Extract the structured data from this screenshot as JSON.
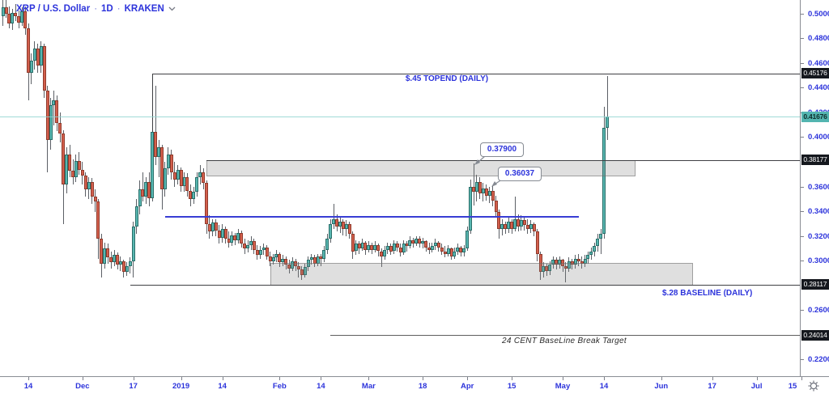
{
  "chart_data": {
    "type": "candlestick",
    "symbol": "XRP / U.S. Dollar",
    "interval": "1D",
    "exchange": "KRAKEN",
    "separator": "·",
    "current_price": 0.41676,
    "current_price_label": "0.41676",
    "price_scale": {
      "price_at_top": 0.5112,
      "price_at_bottom": 0.2069,
      "ticks": [
        {
          "label": "0.50000",
          "value": 0.5
        },
        {
          "label": "0.48000",
          "value": 0.48
        },
        {
          "label": "0.46000",
          "value": 0.46
        },
        {
          "label": "0.44000",
          "value": 0.44
        },
        {
          "label": "0.42000",
          "value": 0.42
        },
        {
          "label": "0.40000",
          "value": 0.4
        },
        {
          "label": "0.36000",
          "value": 0.36
        },
        {
          "label": "0.34000",
          "value": 0.34
        },
        {
          "label": "0.32000",
          "value": 0.32
        },
        {
          "label": "0.30000",
          "value": 0.3
        },
        {
          "label": "0.26000",
          "value": 0.26
        },
        {
          "label": "0.22000",
          "value": 0.22
        }
      ]
    },
    "time_scale": {
      "start_date": "2018-11-06",
      "visible_days": 251.5,
      "ticks": [
        {
          "label": "14",
          "day": 8
        },
        {
          "label": "Dec",
          "day": 25
        },
        {
          "label": "17",
          "day": 41
        },
        {
          "label": "2019",
          "day": 56
        },
        {
          "label": "14",
          "day": 69
        },
        {
          "label": "Feb",
          "day": 87
        },
        {
          "label": "14",
          "day": 100
        },
        {
          "label": "Mar",
          "day": 115
        },
        {
          "label": "18",
          "day": 132
        },
        {
          "label": "Apr",
          "day": 146
        },
        {
          "label": "15",
          "day": 160
        },
        {
          "label": "May",
          "day": 176
        },
        {
          "label": "14",
          "day": 189
        },
        {
          "label": "Jun",
          "day": 207
        },
        {
          "label": "17",
          "day": 223
        },
        {
          "label": "Jul",
          "day": 237
        },
        {
          "label": "15",
          "day": 251
        }
      ]
    },
    "lines": [
      {
        "id": "topend",
        "price": 0.45176,
        "from_day": 47,
        "to_day": 252,
        "style": "dark",
        "badge": "0.45176",
        "label": "$.45 TOPEND (DAILY)",
        "anchor_down_to": 0.4045
      },
      {
        "id": "resistance",
        "price": 0.38177,
        "from_day": 64,
        "to_day": 252,
        "style": "dark",
        "badge": "0.38177",
        "label": ""
      },
      {
        "id": "mid-range",
        "price": 0.3363,
        "from_day": 51,
        "to_day": 181,
        "style": "blue",
        "badge": "",
        "label": ""
      },
      {
        "id": "baseline",
        "price": 0.28117,
        "from_day": 40,
        "to_day": 252,
        "style": "dark",
        "badge": "0.28117",
        "label": "$.28 BASELINE (DAILY)"
      },
      {
        "id": "target",
        "price": 0.24014,
        "from_day": 103,
        "to_day": 252,
        "style": "gray",
        "badge": "0.24014",
        "label": "24 CENT BaseLine Break Target"
      }
    ],
    "zones": [
      {
        "id": "supply",
        "price_top": 0.38177,
        "price_bottom": 0.3686,
        "from_day": 64,
        "to_day": 199
      },
      {
        "id": "demand",
        "price_top": 0.2985,
        "price_bottom": 0.2805,
        "from_day": 84,
        "to_day": 217
      }
    ],
    "callouts": [
      {
        "label": "0.37900",
        "target_day": 148,
        "target_price": 0.379
      },
      {
        "label": "0.36037",
        "target_day": 154,
        "target_price": 0.3604
      }
    ],
    "candles": [
      [
        0.498,
        0.512,
        0.49,
        0.505
      ],
      [
        0.505,
        0.511,
        0.497,
        0.5
      ],
      [
        0.5,
        0.506,
        0.488,
        0.492
      ],
      [
        0.492,
        0.504,
        0.487,
        0.501
      ],
      [
        0.501,
        0.508,
        0.494,
        0.498
      ],
      [
        0.498,
        0.503,
        0.488,
        0.493
      ],
      [
        0.493,
        0.505,
        0.49,
        0.502
      ],
      [
        0.502,
        0.506,
        0.483,
        0.488
      ],
      [
        0.488,
        0.492,
        0.43,
        0.452
      ],
      [
        0.452,
        0.468,
        0.443,
        0.462
      ],
      [
        0.462,
        0.478,
        0.455,
        0.472
      ],
      [
        0.472,
        0.476,
        0.452,
        0.458
      ],
      [
        0.458,
        0.478,
        0.452,
        0.474
      ],
      [
        0.474,
        0.476,
        0.432,
        0.438
      ],
      [
        0.438,
        0.442,
        0.372,
        0.398
      ],
      [
        0.398,
        0.432,
        0.39,
        0.426
      ],
      [
        0.426,
        0.438,
        0.41,
        0.43
      ],
      [
        0.43,
        0.434,
        0.405,
        0.412
      ],
      [
        0.412,
        0.42,
        0.396,
        0.403
      ],
      [
        0.403,
        0.406,
        0.33,
        0.362
      ],
      [
        0.362,
        0.392,
        0.355,
        0.386
      ],
      [
        0.386,
        0.394,
        0.368,
        0.373
      ],
      [
        0.373,
        0.382,
        0.362,
        0.368
      ],
      [
        0.368,
        0.386,
        0.364,
        0.381
      ],
      [
        0.381,
        0.388,
        0.37,
        0.374
      ],
      [
        0.374,
        0.38,
        0.362,
        0.369
      ],
      [
        0.369,
        0.372,
        0.352,
        0.358
      ],
      [
        0.358,
        0.368,
        0.35,
        0.364
      ],
      [
        0.364,
        0.367,
        0.346,
        0.352
      ],
      [
        0.352,
        0.358,
        0.34,
        0.348
      ],
      [
        0.348,
        0.35,
        0.302,
        0.318
      ],
      [
        0.318,
        0.322,
        0.287,
        0.298
      ],
      [
        0.298,
        0.315,
        0.294,
        0.31
      ],
      [
        0.31,
        0.314,
        0.298,
        0.303
      ],
      [
        0.303,
        0.308,
        0.294,
        0.299
      ],
      [
        0.299,
        0.309,
        0.296,
        0.305
      ],
      [
        0.305,
        0.307,
        0.293,
        0.297
      ],
      [
        0.297,
        0.304,
        0.292,
        0.3
      ],
      [
        0.3,
        0.301,
        0.287,
        0.291
      ],
      [
        0.291,
        0.299,
        0.288,
        0.296
      ],
      [
        0.296,
        0.303,
        0.29,
        0.3
      ],
      [
        0.3,
        0.332,
        0.287,
        0.328
      ],
      [
        0.328,
        0.35,
        0.322,
        0.344
      ],
      [
        0.344,
        0.365,
        0.338,
        0.358
      ],
      [
        0.358,
        0.372,
        0.348,
        0.352
      ],
      [
        0.352,
        0.368,
        0.346,
        0.364
      ],
      [
        0.364,
        0.372,
        0.344,
        0.351
      ],
      [
        0.351,
        0.4517,
        0.348,
        0.4045
      ],
      [
        0.4045,
        0.442,
        0.378,
        0.384
      ],
      [
        0.384,
        0.398,
        0.368,
        0.392
      ],
      [
        0.392,
        0.394,
        0.342,
        0.358
      ],
      [
        0.358,
        0.38,
        0.352,
        0.375
      ],
      [
        0.375,
        0.392,
        0.37,
        0.386
      ],
      [
        0.386,
        0.39,
        0.366,
        0.372
      ],
      [
        0.372,
        0.38,
        0.36,
        0.366
      ],
      [
        0.366,
        0.378,
        0.362,
        0.374
      ],
      [
        0.374,
        0.376,
        0.356,
        0.361
      ],
      [
        0.361,
        0.372,
        0.356,
        0.368
      ],
      [
        0.368,
        0.371,
        0.352,
        0.357
      ],
      [
        0.357,
        0.362,
        0.344,
        0.35
      ],
      [
        0.35,
        0.36,
        0.346,
        0.356
      ],
      [
        0.356,
        0.372,
        0.352,
        0.368
      ],
      [
        0.368,
        0.378,
        0.362,
        0.372
      ],
      [
        0.372,
        0.375,
        0.358,
        0.363
      ],
      [
        0.363,
        0.365,
        0.322,
        0.33
      ],
      [
        0.33,
        0.337,
        0.318,
        0.324
      ],
      [
        0.324,
        0.334,
        0.32,
        0.331
      ],
      [
        0.331,
        0.334,
        0.32,
        0.325
      ],
      [
        0.325,
        0.329,
        0.314,
        0.319
      ],
      [
        0.319,
        0.33,
        0.315,
        0.326
      ],
      [
        0.326,
        0.328,
        0.314,
        0.318
      ],
      [
        0.318,
        0.324,
        0.311,
        0.315
      ],
      [
        0.315,
        0.324,
        0.312,
        0.321
      ],
      [
        0.321,
        0.323,
        0.313,
        0.317
      ],
      [
        0.317,
        0.326,
        0.314,
        0.323
      ],
      [
        0.323,
        0.325,
        0.311,
        0.314
      ],
      [
        0.314,
        0.318,
        0.306,
        0.31
      ],
      [
        0.31,
        0.317,
        0.307,
        0.313
      ],
      [
        0.313,
        0.32,
        0.309,
        0.316
      ],
      [
        0.316,
        0.318,
        0.306,
        0.309
      ],
      [
        0.309,
        0.313,
        0.301,
        0.305
      ],
      [
        0.305,
        0.312,
        0.302,
        0.309
      ],
      [
        0.309,
        0.314,
        0.305,
        0.311
      ],
      [
        0.311,
        0.313,
        0.301,
        0.304
      ],
      [
        0.304,
        0.308,
        0.296,
        0.3
      ],
      [
        0.3,
        0.306,
        0.297,
        0.303
      ],
      [
        0.303,
        0.309,
        0.299,
        0.306
      ],
      [
        0.306,
        0.307,
        0.295,
        0.299
      ],
      [
        0.299,
        0.305,
        0.296,
        0.302
      ],
      [
        0.302,
        0.304,
        0.293,
        0.297
      ],
      [
        0.297,
        0.301,
        0.29,
        0.294
      ],
      [
        0.294,
        0.303,
        0.292,
        0.3
      ],
      [
        0.3,
        0.302,
        0.292,
        0.296
      ],
      [
        0.296,
        0.299,
        0.287,
        0.293
      ],
      [
        0.293,
        0.296,
        0.285,
        0.289
      ],
      [
        0.289,
        0.298,
        0.287,
        0.295
      ],
      [
        0.295,
        0.304,
        0.292,
        0.301
      ],
      [
        0.301,
        0.306,
        0.297,
        0.303
      ],
      [
        0.303,
        0.305,
        0.295,
        0.298
      ],
      [
        0.298,
        0.306,
        0.296,
        0.304
      ],
      [
        0.304,
        0.306,
        0.296,
        0.302
      ],
      [
        0.302,
        0.312,
        0.299,
        0.309
      ],
      [
        0.309,
        0.322,
        0.306,
        0.318
      ],
      [
        0.318,
        0.334,
        0.315,
        0.33
      ],
      [
        0.33,
        0.346,
        0.326,
        0.334
      ],
      [
        0.334,
        0.338,
        0.324,
        0.328
      ],
      [
        0.328,
        0.336,
        0.323,
        0.332
      ],
      [
        0.332,
        0.334,
        0.321,
        0.326
      ],
      [
        0.326,
        0.333,
        0.32,
        0.33
      ],
      [
        0.33,
        0.332,
        0.318,
        0.322
      ],
      [
        0.322,
        0.324,
        0.302,
        0.308
      ],
      [
        0.308,
        0.317,
        0.305,
        0.314
      ],
      [
        0.314,
        0.316,
        0.306,
        0.31
      ],
      [
        0.31,
        0.318,
        0.308,
        0.315
      ],
      [
        0.315,
        0.316,
        0.305,
        0.309
      ],
      [
        0.309,
        0.316,
        0.307,
        0.313
      ],
      [
        0.313,
        0.315,
        0.306,
        0.309
      ],
      [
        0.309,
        0.316,
        0.307,
        0.313
      ],
      [
        0.313,
        0.314,
        0.304,
        0.308
      ],
      [
        0.308,
        0.31,
        0.295,
        0.304
      ],
      [
        0.304,
        0.312,
        0.301,
        0.309
      ],
      [
        0.309,
        0.315,
        0.306,
        0.312
      ],
      [
        0.312,
        0.314,
        0.305,
        0.308
      ],
      [
        0.308,
        0.317,
        0.306,
        0.314
      ],
      [
        0.314,
        0.316,
        0.308,
        0.311
      ],
      [
        0.311,
        0.314,
        0.304,
        0.307
      ],
      [
        0.307,
        0.317,
        0.305,
        0.314
      ],
      [
        0.314,
        0.316,
        0.308,
        0.312
      ],
      [
        0.312,
        0.32,
        0.31,
        0.317
      ],
      [
        0.317,
        0.319,
        0.311,
        0.314
      ],
      [
        0.314,
        0.32,
        0.312,
        0.318
      ],
      [
        0.318,
        0.32,
        0.311,
        0.314
      ],
      [
        0.314,
        0.319,
        0.31,
        0.316
      ],
      [
        0.316,
        0.317,
        0.308,
        0.311
      ],
      [
        0.311,
        0.315,
        0.306,
        0.309
      ],
      [
        0.309,
        0.315,
        0.307,
        0.312
      ],
      [
        0.312,
        0.318,
        0.309,
        0.315
      ],
      [
        0.315,
        0.316,
        0.308,
        0.311
      ],
      [
        0.311,
        0.314,
        0.305,
        0.308
      ],
      [
        0.308,
        0.312,
        0.303,
        0.306
      ],
      [
        0.306,
        0.313,
        0.304,
        0.31
      ],
      [
        0.31,
        0.311,
        0.301,
        0.304
      ],
      [
        0.304,
        0.311,
        0.302,
        0.308
      ],
      [
        0.308,
        0.314,
        0.305,
        0.311
      ],
      [
        0.311,
        0.312,
        0.304,
        0.307
      ],
      [
        0.307,
        0.313,
        0.304,
        0.31
      ],
      [
        0.31,
        0.328,
        0.308,
        0.325
      ],
      [
        0.325,
        0.366,
        0.322,
        0.36
      ],
      [
        0.36,
        0.379,
        0.345,
        0.356
      ],
      [
        0.356,
        0.37,
        0.348,
        0.364
      ],
      [
        0.364,
        0.368,
        0.35,
        0.355
      ],
      [
        0.355,
        0.363,
        0.348,
        0.359
      ],
      [
        0.359,
        0.362,
        0.349,
        0.353
      ],
      [
        0.353,
        0.36,
        0.347,
        0.357
      ],
      [
        0.357,
        0.3604,
        0.344,
        0.349
      ],
      [
        0.349,
        0.353,
        0.335,
        0.34
      ],
      [
        0.34,
        0.342,
        0.318,
        0.326
      ],
      [
        0.326,
        0.334,
        0.321,
        0.33
      ],
      [
        0.33,
        0.332,
        0.322,
        0.326
      ],
      [
        0.326,
        0.336,
        0.323,
        0.332
      ],
      [
        0.332,
        0.334,
        0.322,
        0.326
      ],
      [
        0.326,
        0.352,
        0.324,
        0.334
      ],
      [
        0.334,
        0.338,
        0.324,
        0.328
      ],
      [
        0.328,
        0.337,
        0.325,
        0.333
      ],
      [
        0.333,
        0.335,
        0.325,
        0.329
      ],
      [
        0.329,
        0.334,
        0.322,
        0.326
      ],
      [
        0.326,
        0.333,
        0.323,
        0.33
      ],
      [
        0.33,
        0.331,
        0.32,
        0.324
      ],
      [
        0.324,
        0.326,
        0.3,
        0.306
      ],
      [
        0.306,
        0.308,
        0.285,
        0.291
      ],
      [
        0.291,
        0.299,
        0.287,
        0.296
      ],
      [
        0.296,
        0.298,
        0.288,
        0.292
      ],
      [
        0.292,
        0.3,
        0.289,
        0.297
      ],
      [
        0.297,
        0.304,
        0.294,
        0.301
      ],
      [
        0.301,
        0.303,
        0.293,
        0.297
      ],
      [
        0.297,
        0.304,
        0.294,
        0.301
      ],
      [
        0.301,
        0.302,
        0.291,
        0.296
      ],
      [
        0.296,
        0.299,
        0.283,
        0.294
      ],
      [
        0.294,
        0.303,
        0.291,
        0.3
      ],
      [
        0.3,
        0.302,
        0.293,
        0.297
      ],
      [
        0.297,
        0.305,
        0.294,
        0.302
      ],
      [
        0.302,
        0.306,
        0.296,
        0.3
      ],
      [
        0.3,
        0.304,
        0.294,
        0.298
      ],
      [
        0.298,
        0.305,
        0.295,
        0.302
      ],
      [
        0.302,
        0.308,
        0.298,
        0.305
      ],
      [
        0.305,
        0.311,
        0.301,
        0.308
      ],
      [
        0.308,
        0.315,
        0.304,
        0.312
      ],
      [
        0.312,
        0.322,
        0.308,
        0.318
      ],
      [
        0.318,
        0.326,
        0.306,
        0.322
      ],
      [
        0.322,
        0.425,
        0.318,
        0.408
      ],
      [
        0.408,
        0.4495,
        0.398,
        0.4168
      ]
    ]
  },
  "colors": {
    "up": "#58b6b0",
    "up_border": "#2a6f6a",
    "down": "#d35f4d",
    "down_border": "#8f3b2c",
    "axis_text": "#2c33db",
    "annotation_blue": "#2c33db",
    "line_dark": "#3f4044",
    "line_blue": "#383dd4",
    "current_badge": "#53b5b0",
    "badge_dark": "#15181e",
    "zone_fill": "rgba(128,128,128,0.25)"
  }
}
